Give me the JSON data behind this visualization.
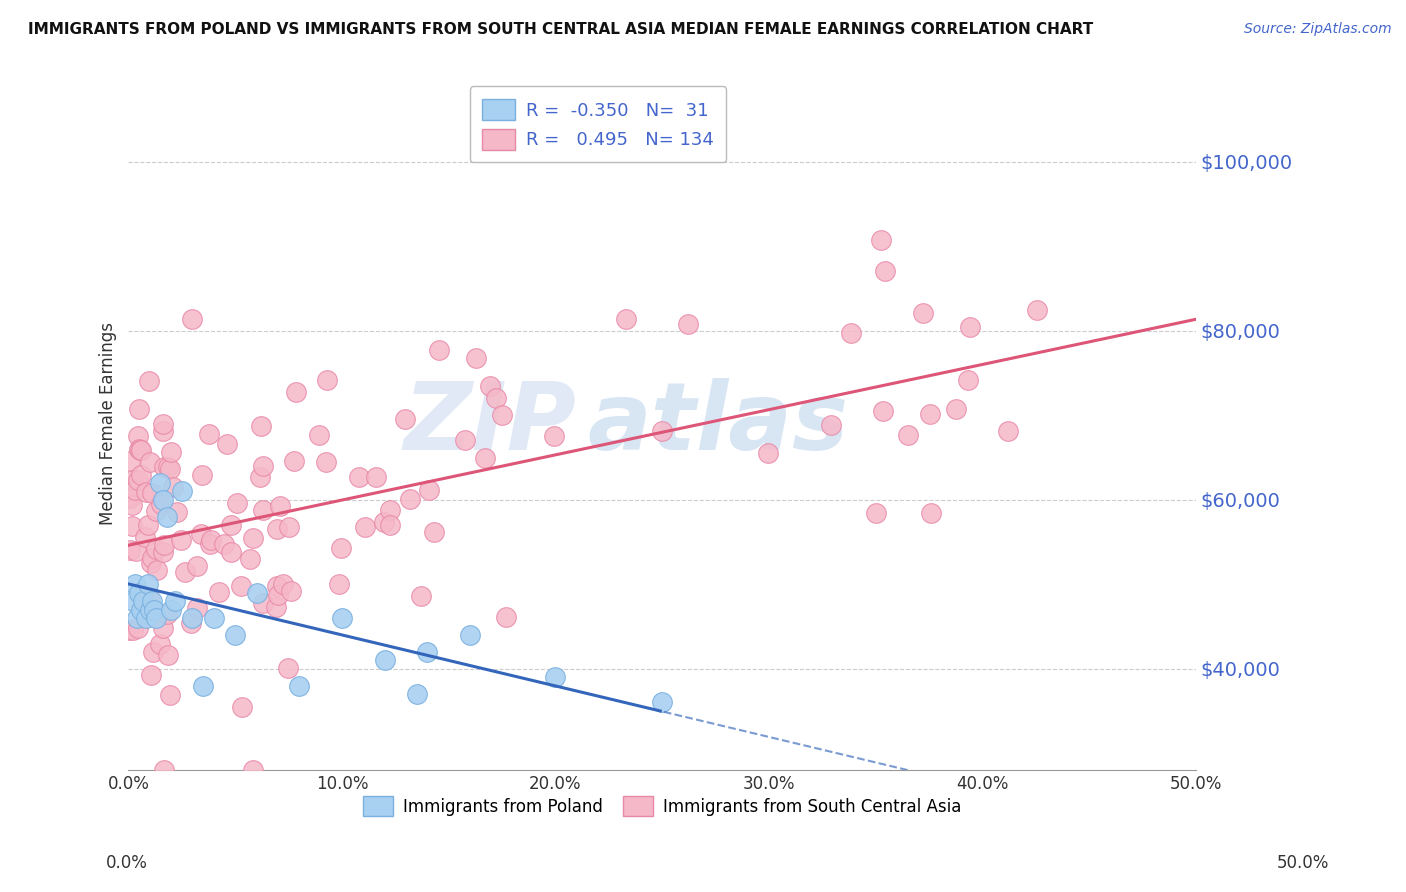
{
  "title": "IMMIGRANTS FROM POLAND VS IMMIGRANTS FROM SOUTH CENTRAL ASIA MEDIAN FEMALE EARNINGS CORRELATION CHART",
  "source": "Source: ZipAtlas.com",
  "ylabel": "Median Female Earnings",
  "xlim": [
    0.0,
    0.5
  ],
  "ylim": [
    28000,
    110000
  ],
  "yticks": [
    40000,
    60000,
    80000,
    100000
  ],
  "xticks": [
    0.0,
    0.1,
    0.2,
    0.3,
    0.4,
    0.5
  ],
  "xtick_labels": [
    "0.0%",
    "10.0%",
    "20.0%",
    "30.0%",
    "40.0%",
    "50.0%"
  ],
  "ytick_labels": [
    "$40,000",
    "$60,000",
    "$80,000",
    "$100,000"
  ],
  "poland_color": "#a8d0f0",
  "poland_edge": "#7ab0e0",
  "asia_color": "#f5b8c8",
  "asia_edge": "#e888a8",
  "trend_poland_color": "#3366bb",
  "trend_asia_color": "#dd5577",
  "R_poland": -0.35,
  "N_poland": 31,
  "R_asia": 0.495,
  "N_asia": 134,
  "watermark_zip": "ZIP",
  "watermark_atlas": "atlas",
  "background_color": "#ffffff",
  "grid_color": "#cccccc",
  "axis_label_color": "#4466cc",
  "legend_text_color": "#4466cc"
}
